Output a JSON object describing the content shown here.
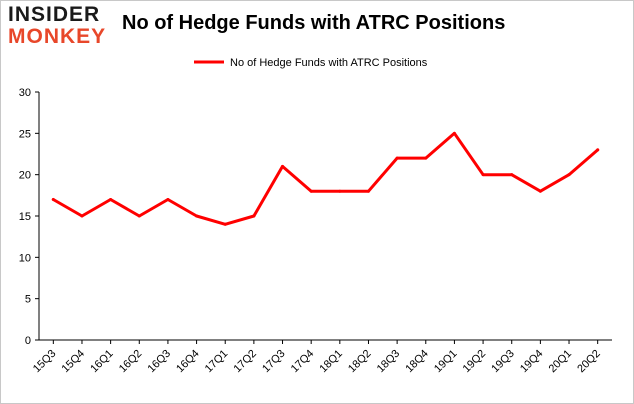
{
  "logo": {
    "line1": "INSIDER",
    "line2": "MONKEY",
    "colors": {
      "dark": "#1a1a1a",
      "accent": "#e8472a"
    }
  },
  "chart_data": {
    "type": "line",
    "title": "No of Hedge Funds with ATRC Positions",
    "categories": [
      "15Q3",
      "15Q4",
      "16Q1",
      "16Q2",
      "16Q3",
      "16Q4",
      "17Q1",
      "17Q2",
      "17Q3",
      "17Q4",
      "18Q1",
      "18Q2",
      "18Q3",
      "18Q4",
      "19Q1",
      "19Q2",
      "19Q3",
      "19Q4",
      "20Q1",
      "20Q2"
    ],
    "series": [
      {
        "name": "No of Hedge Funds with ATRC Positions",
        "values": [
          17,
          15,
          17,
          15,
          17,
          15,
          14,
          15,
          21,
          18,
          18,
          18,
          22,
          22,
          25,
          20,
          20,
          18,
          20,
          23
        ],
        "color": "#ff0000"
      }
    ],
    "yticks": [
      0,
      5,
      10,
      15,
      20,
      25,
      30
    ],
    "ylim": [
      0,
      30
    ],
    "xlabel": "",
    "ylabel": "",
    "legend": "top-center",
    "grid": false
  }
}
